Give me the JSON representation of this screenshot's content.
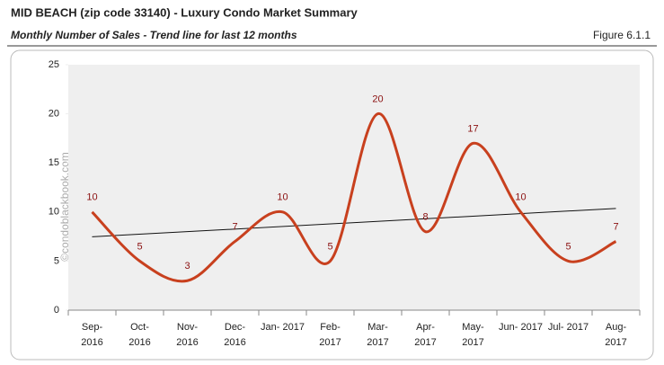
{
  "chart_data": {
    "type": "line",
    "title": "MID BEACH (zip code 33140) - Luxury Condo Market Summary",
    "subtitle": "Monthly Number of Sales - Trend line for last 12 months",
    "figure_label": "Figure 6.1.1",
    "watermark": "©condoblackbook.com",
    "categories": [
      "Sep-\n2016",
      "Oct-\n2016",
      "Nov-\n2016",
      "Dec-\n2016",
      "Jan- 2017",
      "Feb-\n2017",
      "Mar-\n2017",
      "Apr-\n2017",
      "May-\n2017",
      "Jun- 2017",
      "Jul- 2017",
      "Aug-\n2017"
    ],
    "series": [
      {
        "name": "Sales",
        "color": "#c8401e",
        "values": [
          10,
          5,
          3,
          7,
          10,
          5,
          20,
          8,
          17,
          10,
          5,
          7
        ]
      }
    ],
    "trendline": true,
    "trend_color": "#111111",
    "ylim": [
      0,
      25
    ],
    "yticks": [
      0,
      5,
      10,
      15,
      20,
      25
    ],
    "grid": false
  }
}
